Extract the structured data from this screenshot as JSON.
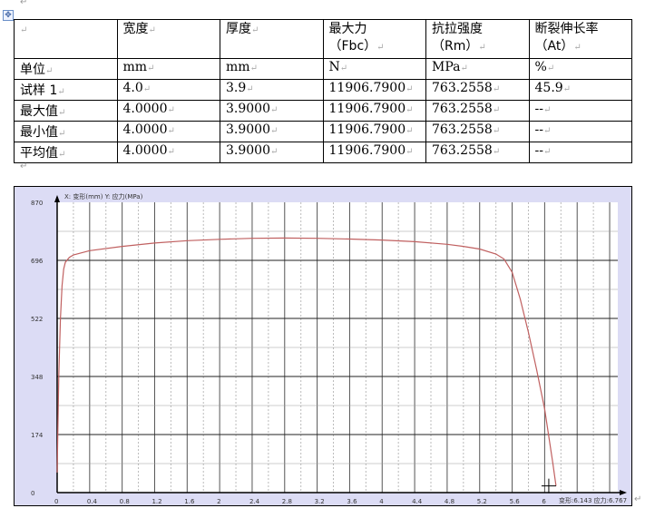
{
  "table": {
    "headers": [
      "",
      "宽度",
      "厚度",
      "最大力\n（Fbc）",
      "抗拉强度\n（Rm）",
      "断裂伸长率\n（At）"
    ],
    "rows": [
      [
        "单位",
        "mm",
        "mm",
        "N",
        "MPa",
        "%"
      ],
      [
        "试样 1",
        "4.0",
        "3.9",
        "11906.7900",
        "763.2558",
        "45.9"
      ],
      [
        "最大值",
        "4.0000",
        "3.9000",
        "11906.7900",
        "763.2558",
        "--"
      ],
      [
        "最小值",
        "4.0000",
        "3.9000",
        "11906.7900",
        "763.2558",
        "--"
      ],
      [
        "平均值",
        "4.0000",
        "3.9000",
        "11906.7900",
        "763.2558",
        "--"
      ]
    ]
  },
  "chart_data": {
    "type": "line",
    "axis_caption": "X: 变形(mm)   Y: 应力(MPa)",
    "readout": "变形:6.143 应力:6.767",
    "xlim": [
      0,
      6.9
    ],
    "ylim": [
      0,
      870
    ],
    "xticks": [
      "0",
      "0.4",
      "0.8",
      "1.2",
      "1.6",
      "2",
      "2.4",
      "2.8",
      "3.2",
      "3.6",
      "4",
      "4.4",
      "4.8",
      "5.2",
      "5.6",
      "6"
    ],
    "yticks": [
      "0",
      "174",
      "348",
      "522",
      "696",
      "870"
    ],
    "grid": true,
    "line_color": "#c06060",
    "x": [
      0,
      0.02,
      0.04,
      0.06,
      0.08,
      0.1,
      0.15,
      0.2,
      0.4,
      0.8,
      1.2,
      1.6,
      2.0,
      2.4,
      2.8,
      3.2,
      3.6,
      4.0,
      4.4,
      4.8,
      5.0,
      5.2,
      5.4,
      5.5,
      5.6,
      5.7,
      5.8,
      5.9,
      6.0,
      6.1,
      6.14
    ],
    "y": [
      60,
      350,
      520,
      620,
      670,
      690,
      705,
      712,
      725,
      738,
      748,
      755,
      759,
      762,
      763,
      762,
      760,
      757,
      752,
      744,
      738,
      730,
      715,
      700,
      660,
      580,
      480,
      370,
      250,
      90,
      20
    ]
  }
}
